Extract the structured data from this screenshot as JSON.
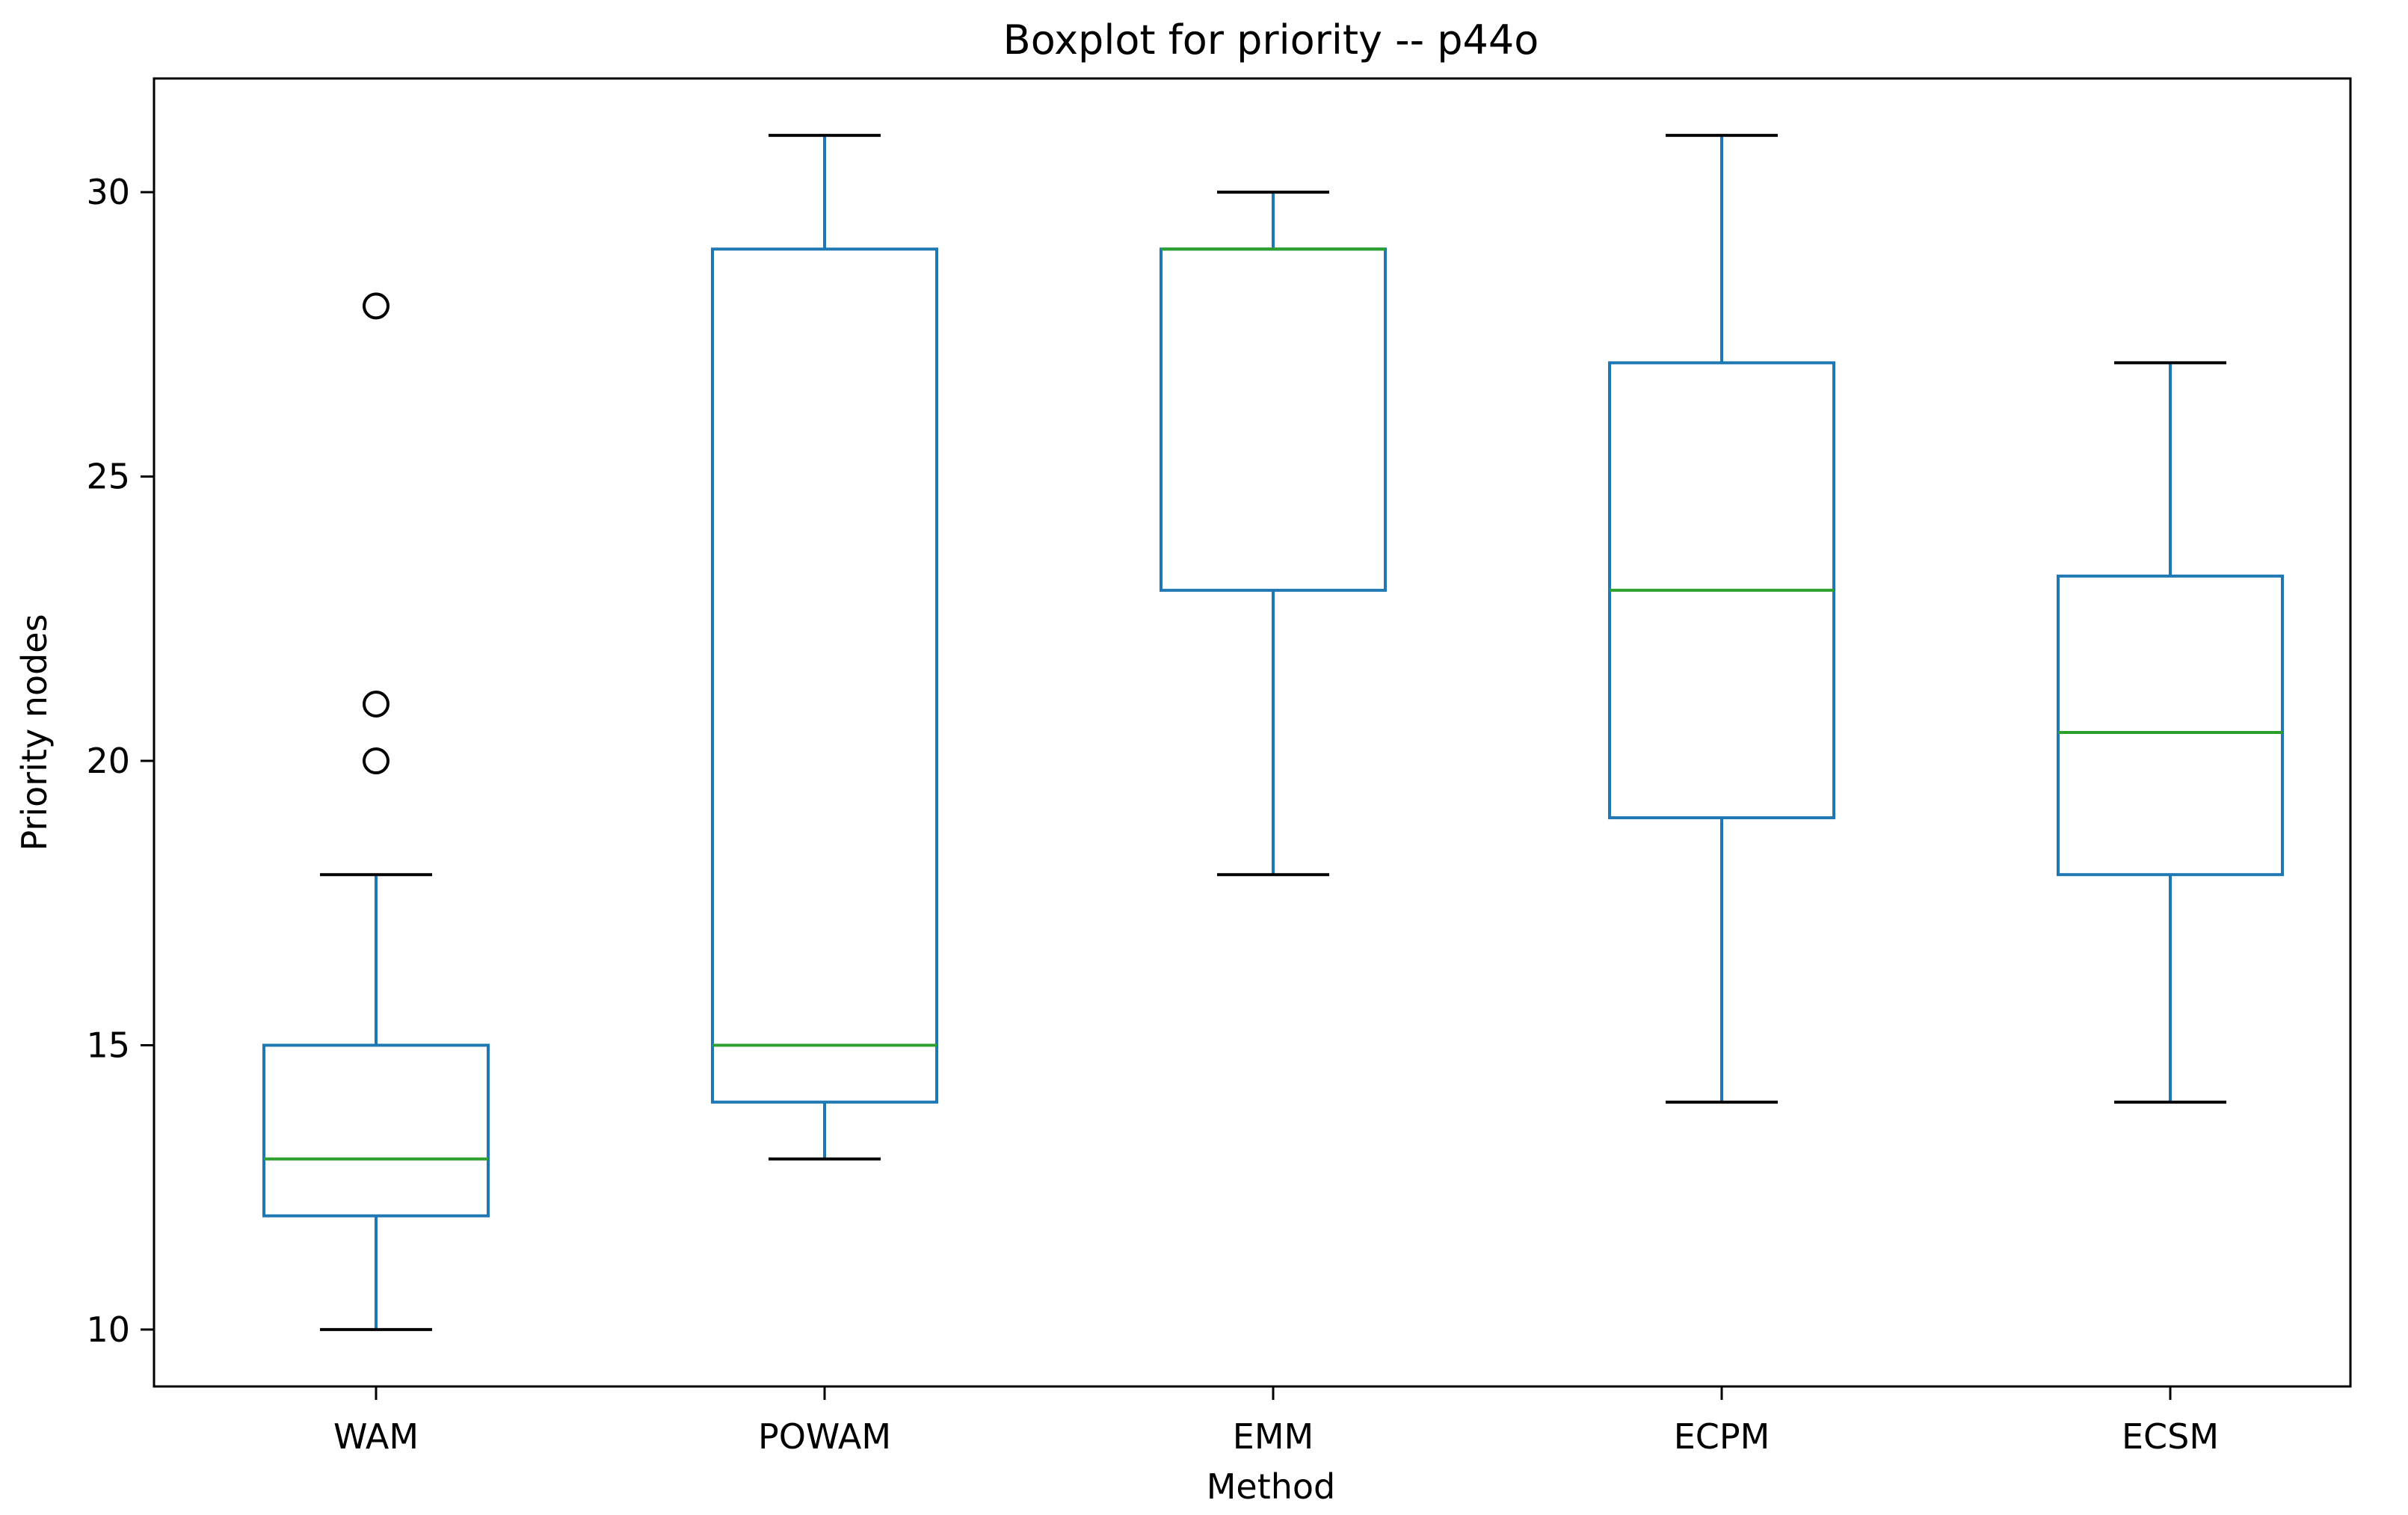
{
  "chart_data": {
    "type": "box",
    "title": "Boxplot for priority -- p44o",
    "xlabel": "Method",
    "ylabel": "Priority nodes",
    "ylim": [
      9.0,
      32.0
    ],
    "yticks": [
      10,
      15,
      20,
      25,
      30
    ],
    "grid": false,
    "categories": [
      "WAM",
      "POWAM",
      "EMM",
      "ECPM",
      "ECSM"
    ],
    "boxes": [
      {
        "category": "WAM",
        "whisker_low": 10,
        "q1": 12,
        "median": 13,
        "q3": 15,
        "whisker_high": 18,
        "outliers": [
          20,
          21,
          28
        ]
      },
      {
        "category": "POWAM",
        "whisker_low": 13,
        "q1": 14,
        "median": 15,
        "q3": 29,
        "whisker_high": 31,
        "outliers": []
      },
      {
        "category": "EMM",
        "whisker_low": 18,
        "q1": 23,
        "median": 29,
        "q3": 29,
        "whisker_high": 30,
        "outliers": []
      },
      {
        "category": "ECPM",
        "whisker_low": 14,
        "q1": 19,
        "median": 23,
        "q3": 27,
        "whisker_high": 31,
        "outliers": []
      },
      {
        "category": "ECSM",
        "whisker_low": 14,
        "q1": 18,
        "median": 20.5,
        "q3": 23.25,
        "whisker_high": 27,
        "outliers": []
      }
    ],
    "colors": {
      "box": "#1f77b4",
      "median": "#2ca02c",
      "caps": "#000000",
      "outlier": "#000000"
    }
  }
}
